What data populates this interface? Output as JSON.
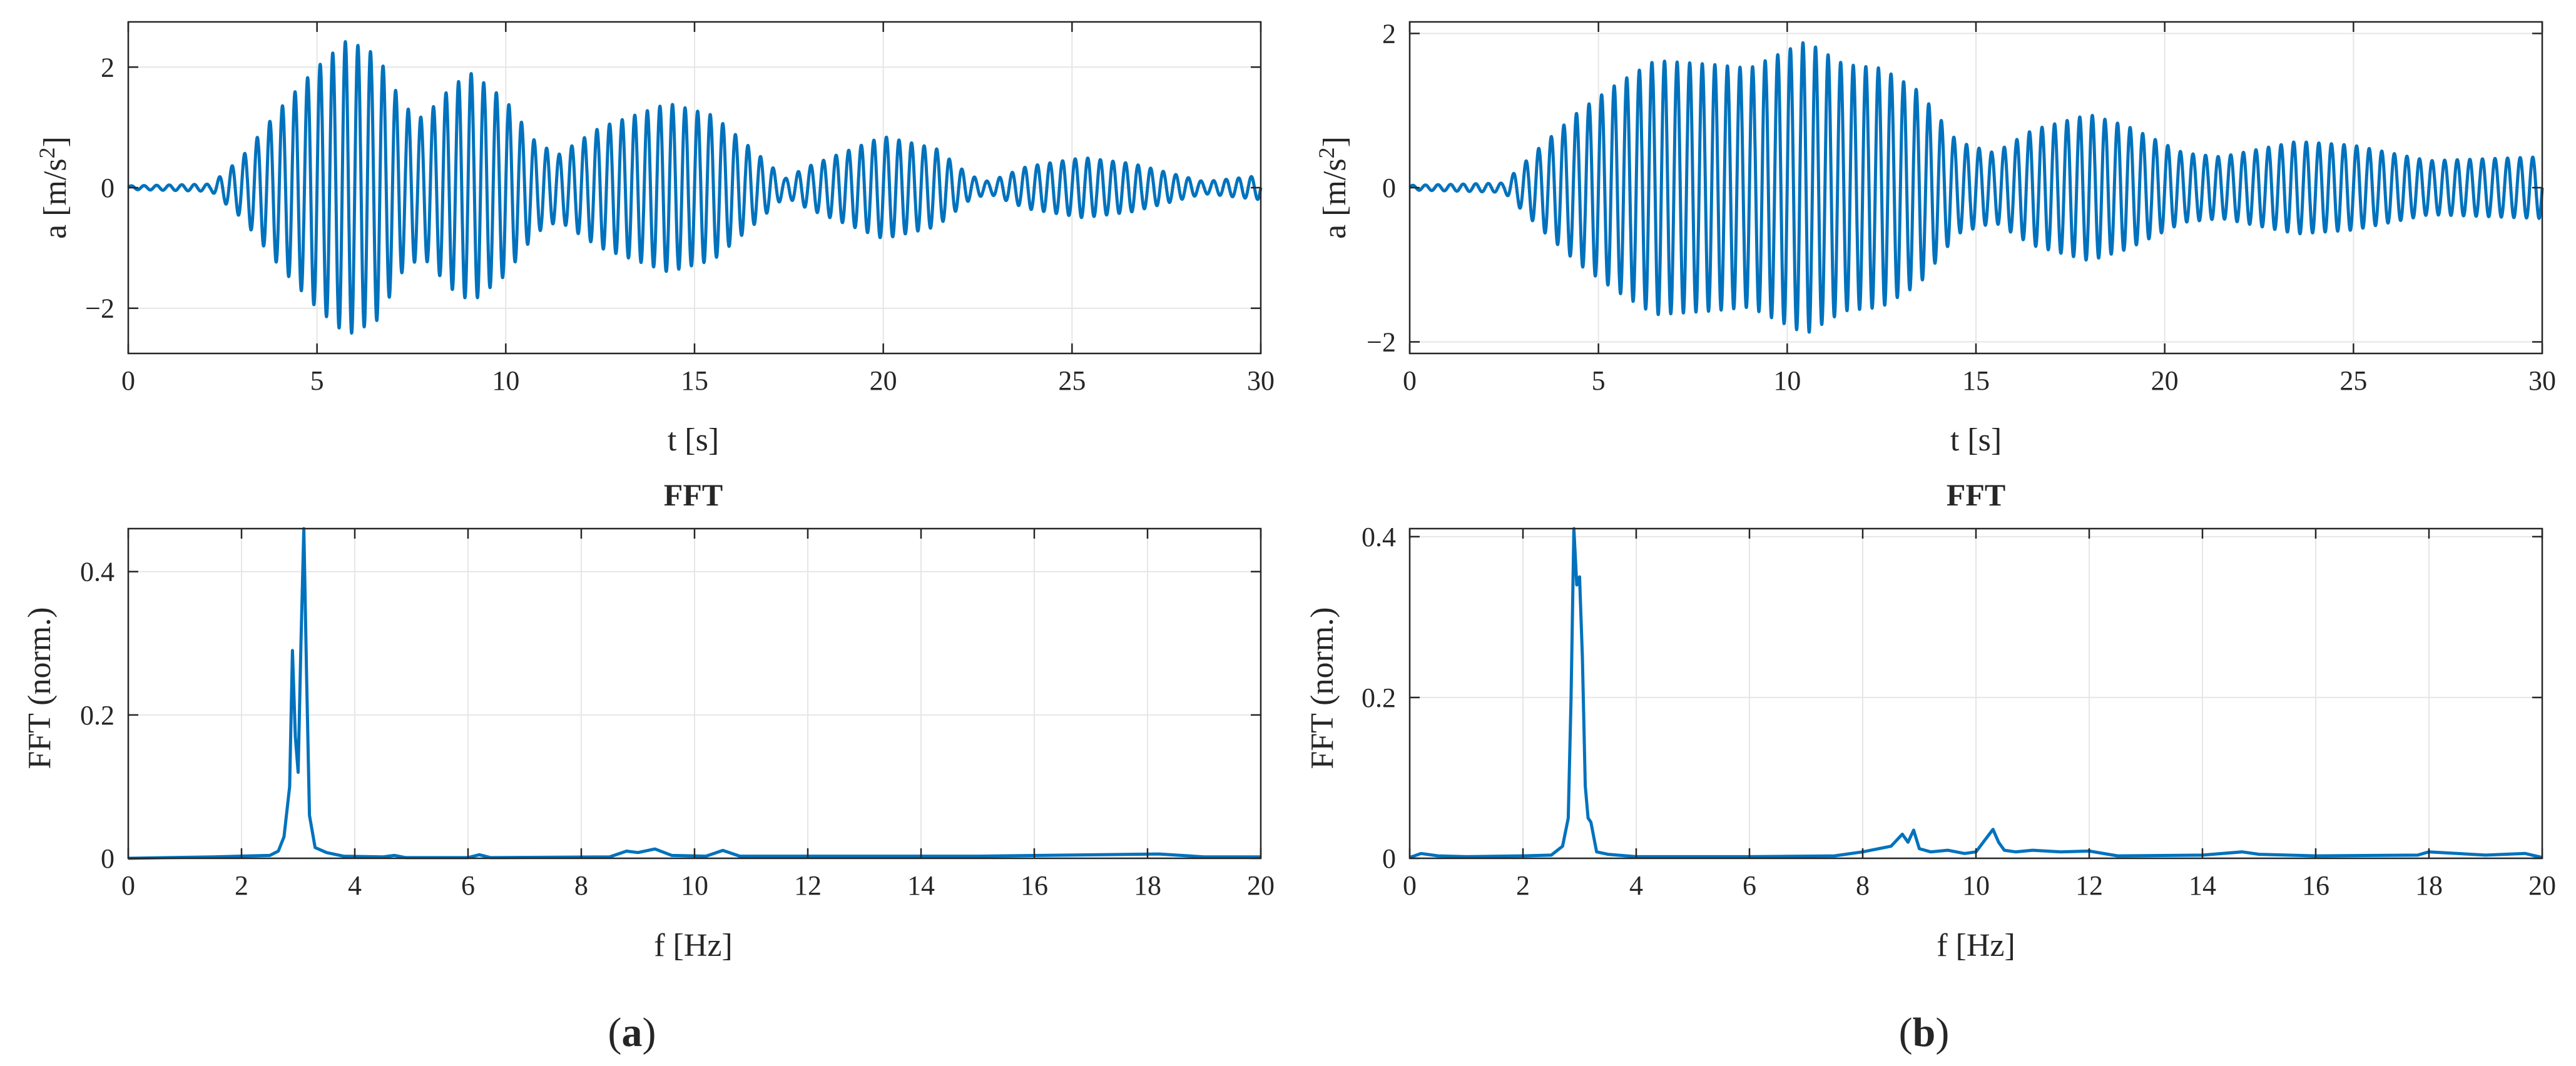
{
  "panels": [
    {
      "label": "(a)",
      "label_letter": "a",
      "time_plot": {
        "xlabel": "t [s]",
        "ylabel": "a [m/s²]"
      },
      "fft_plot": {
        "title": "FFT",
        "xlabel": "f [Hz]",
        "ylabel": "FFT (norm.)"
      }
    },
    {
      "label": "(b)",
      "label_letter": "b",
      "time_plot": {
        "xlabel": "t [s]",
        "ylabel": "a [m/s²]"
      },
      "fft_plot": {
        "title": "FFT",
        "xlabel": "f [Hz]",
        "ylabel": "FFT (norm.)"
      }
    }
  ],
  "colors": {
    "line": "#0072BD",
    "grid": "#e6e6e6",
    "axis": "#262626"
  },
  "chart_data": [
    {
      "id": "a-time",
      "type": "line",
      "title": "",
      "xlabel": "t [s]",
      "ylabel": "a [m/s²]",
      "xlim": [
        0,
        30
      ],
      "ylim": [
        -2.75,
        2.75
      ],
      "xticks": [
        0,
        5,
        10,
        15,
        20,
        25,
        30
      ],
      "yticks": [
        -2,
        0,
        2
      ],
      "grid": true,
      "series": [
        {
          "signal": "oscillation",
          "carrier_hz": 3.0,
          "envelope": [
            [
              0,
              0.03
            ],
            [
              2.2,
              0.06
            ],
            [
              3.0,
              0.5
            ],
            [
              4.0,
              1.3
            ],
            [
              5.0,
              2.0
            ],
            [
              5.8,
              2.45
            ],
            [
              6.6,
              2.2
            ],
            [
              7.3,
              1.35
            ],
            [
              7.8,
              1.15
            ],
            [
              8.6,
              1.7
            ],
            [
              9.1,
              1.9
            ],
            [
              10.0,
              1.45
            ],
            [
              10.8,
              0.75
            ],
            [
              11.4,
              0.55
            ],
            [
              12.5,
              1.0
            ],
            [
              14.3,
              1.4
            ],
            [
              15.5,
              1.2
            ],
            [
              16.6,
              0.6
            ],
            [
              17.4,
              0.15
            ],
            [
              18.0,
              0.35
            ],
            [
              20.0,
              0.85
            ],
            [
              21.4,
              0.65
            ],
            [
              22.3,
              0.2
            ],
            [
              22.8,
              0.1
            ],
            [
              23.8,
              0.35
            ],
            [
              25.3,
              0.5
            ],
            [
              26.6,
              0.4
            ],
            [
              28.5,
              0.1
            ],
            [
              30.0,
              0.2
            ]
          ]
        }
      ]
    },
    {
      "id": "b-time",
      "type": "line",
      "title": "",
      "xlabel": "t [s]",
      "ylabel": "a [m/s²]",
      "xlim": [
        0,
        30
      ],
      "ylim": [
        -2.15,
        2.15
      ],
      "xticks": [
        0,
        5,
        10,
        15,
        20,
        25,
        30
      ],
      "yticks": [
        -2,
        0,
        2
      ],
      "grid": true,
      "series": [
        {
          "signal": "oscillation",
          "carrier_hz": 3.0,
          "envelope": [
            [
              0,
              0.03
            ],
            [
              2.5,
              0.06
            ],
            [
              3.5,
              0.55
            ],
            [
              4.5,
              1.0
            ],
            [
              5.5,
              1.35
            ],
            [
              6.5,
              1.65
            ],
            [
              8.0,
              1.6
            ],
            [
              9.0,
              1.55
            ],
            [
              10.5,
              1.9
            ],
            [
              11.5,
              1.6
            ],
            [
              12.5,
              1.55
            ],
            [
              13.5,
              1.25
            ],
            [
              14.5,
              0.6
            ],
            [
              15.5,
              0.45
            ],
            [
              16.5,
              0.75
            ],
            [
              18.0,
              0.95
            ],
            [
              19.0,
              0.8
            ],
            [
              20.5,
              0.45
            ],
            [
              21.5,
              0.4
            ],
            [
              23.5,
              0.6
            ],
            [
              25.0,
              0.55
            ],
            [
              27.0,
              0.35
            ],
            [
              30.0,
              0.4
            ]
          ]
        }
      ]
    },
    {
      "id": "a-fft",
      "type": "line",
      "title": "FFT",
      "xlabel": "f [Hz]",
      "ylabel": "FFT (norm.)",
      "xlim": [
        0,
        20
      ],
      "ylim": [
        0,
        0.46
      ],
      "xticks": [
        0,
        2,
        4,
        6,
        8,
        10,
        12,
        14,
        16,
        18,
        20
      ],
      "yticks": [
        0,
        0.2,
        0.4
      ],
      "grid": true,
      "series": [
        {
          "x": [
            0,
            1.5,
            2.5,
            2.65,
            2.75,
            2.85,
            2.9,
            2.95,
            3.0,
            3.05,
            3.1,
            3.15,
            3.2,
            3.3,
            3.5,
            3.8,
            4.5,
            4.7,
            4.9,
            6.0,
            6.2,
            6.4,
            8.5,
            8.8,
            9.0,
            9.3,
            9.6,
            10.2,
            10.5,
            10.8,
            12.0,
            15.0,
            18.2,
            19.0,
            20.0
          ],
          "y": [
            0,
            0.002,
            0.004,
            0.01,
            0.03,
            0.1,
            0.29,
            0.17,
            0.12,
            0.3,
            0.46,
            0.25,
            0.06,
            0.015,
            0.008,
            0.003,
            0.002,
            0.004,
            0.001,
            0.001,
            0.005,
            0.001,
            0.002,
            0.01,
            0.008,
            0.013,
            0.004,
            0.003,
            0.011,
            0.003,
            0.003,
            0.003,
            0.006,
            0.002,
            0.002
          ]
        }
      ]
    },
    {
      "id": "b-fft",
      "type": "line",
      "title": "FFT",
      "xlabel": "f [Hz]",
      "ylabel": "FFT (norm.)",
      "xlim": [
        0,
        20
      ],
      "ylim": [
        0,
        0.41
      ],
      "xticks": [
        0,
        2,
        4,
        6,
        8,
        10,
        12,
        14,
        16,
        18,
        20
      ],
      "yticks": [
        0,
        0.2,
        0.4
      ],
      "grid": true,
      "series": [
        {
          "x": [
            0,
            0.2,
            0.5,
            1.0,
            2.0,
            2.5,
            2.7,
            2.8,
            2.85,
            2.9,
            2.95,
            3.0,
            3.05,
            3.1,
            3.15,
            3.2,
            3.3,
            3.5,
            4.0,
            6.0,
            7.5,
            8.0,
            8.5,
            8.7,
            8.8,
            8.9,
            9.0,
            9.2,
            9.5,
            9.8,
            10.0,
            10.3,
            10.4,
            10.5,
            10.7,
            11.0,
            11.5,
            12.0,
            12.5,
            14.0,
            14.7,
            15.0,
            16.0,
            17.8,
            18.0,
            19.0,
            19.7,
            20.0
          ],
          "y": [
            0.001,
            0.006,
            0.003,
            0.002,
            0.003,
            0.004,
            0.015,
            0.05,
            0.2,
            0.41,
            0.34,
            0.35,
            0.25,
            0.09,
            0.05,
            0.045,
            0.008,
            0.005,
            0.002,
            0.002,
            0.003,
            0.008,
            0.015,
            0.03,
            0.02,
            0.035,
            0.012,
            0.008,
            0.01,
            0.006,
            0.008,
            0.036,
            0.02,
            0.01,
            0.008,
            0.01,
            0.008,
            0.009,
            0.003,
            0.004,
            0.008,
            0.005,
            0.003,
            0.004,
            0.008,
            0.004,
            0.006,
            0.001
          ]
        }
      ]
    }
  ]
}
